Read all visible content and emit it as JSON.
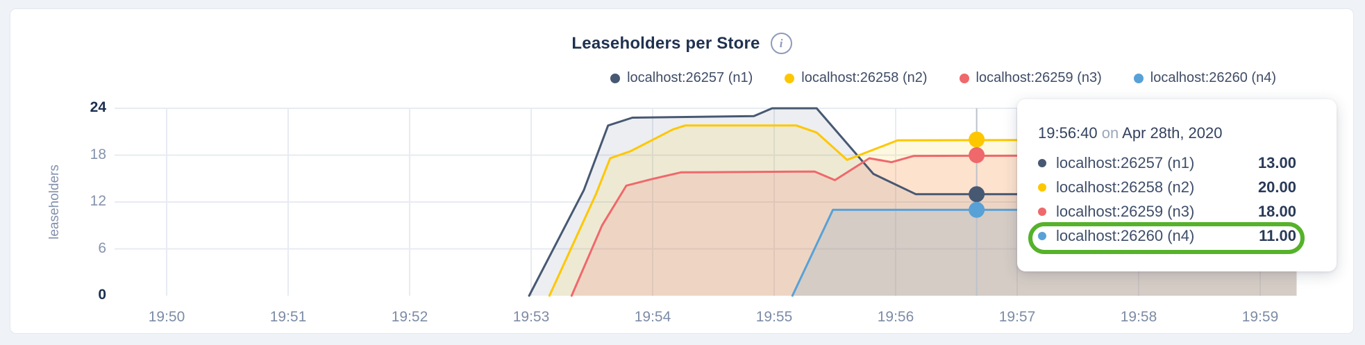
{
  "header": {
    "title": "Leaseholders per Store",
    "info_glyph": "i"
  },
  "legend": {
    "items": [
      {
        "label": "localhost:26257 (n1)",
        "color": "#475872"
      },
      {
        "label": "localhost:26258 (n2)",
        "color": "#fdc700"
      },
      {
        "label": "localhost:26259 (n3)",
        "color": "#ef686b"
      },
      {
        "label": "localhost:26260 (n4)",
        "color": "#58a1d6"
      }
    ]
  },
  "chart_data": {
    "type": "area",
    "title": "Leaseholders per Store",
    "ylabel": "leaseholders",
    "ylim": [
      0,
      24
    ],
    "grid": true,
    "grid_color": "#e7ebf2",
    "crosshair_color": "#bcc2cc",
    "x_ticks": [
      {
        "label": "19:50",
        "t": 0
      },
      {
        "label": "19:51",
        "t": 60
      },
      {
        "label": "19:52",
        "t": 120
      },
      {
        "label": "19:53",
        "t": 180
      },
      {
        "label": "19:54",
        "t": 240
      },
      {
        "label": "19:55",
        "t": 300
      },
      {
        "label": "19:56",
        "t": 360
      },
      {
        "label": "19:57",
        "t": 420
      },
      {
        "label": "19:58",
        "t": 480
      },
      {
        "label": "19:59",
        "t": 540
      }
    ],
    "y_ticks": [
      {
        "label": "24",
        "value": 24,
        "bold": true
      },
      {
        "label": "18",
        "value": 18,
        "bold": false
      },
      {
        "label": "12",
        "value": 12,
        "bold": false
      },
      {
        "label": "6",
        "value": 6,
        "bold": false
      },
      {
        "label": "0",
        "value": 0,
        "bold": true
      }
    ],
    "hover": {
      "t": 400,
      "time_label": "19:56:40"
    },
    "series": [
      {
        "name": "localhost:26257 (n1)",
        "color": "#475872",
        "fill_opacity": 0.1,
        "hover_value": 13,
        "points": [
          [
            179,
            0
          ],
          [
            206,
            13.5
          ],
          [
            218,
            21.8
          ],
          [
            230,
            22.8
          ],
          [
            290,
            23
          ],
          [
            299,
            24
          ],
          [
            321,
            24
          ],
          [
            349,
            15.6
          ],
          [
            370,
            13
          ],
          [
            558,
            13
          ]
        ]
      },
      {
        "name": "localhost:26258 (n2)",
        "color": "#fdc700",
        "fill_opacity": 0.12,
        "hover_value": 20,
        "points": [
          [
            189,
            0
          ],
          [
            212,
            13
          ],
          [
            219,
            17.6
          ],
          [
            229,
            18.5
          ],
          [
            250,
            21.3
          ],
          [
            256,
            21.8
          ],
          [
            311,
            21.8
          ],
          [
            321,
            20.9
          ],
          [
            336,
            17.4
          ],
          [
            361,
            19.9
          ],
          [
            558,
            20
          ]
        ]
      },
      {
        "name": "localhost:26259 (n3)",
        "color": "#ef686b",
        "fill_opacity": 0.15,
        "hover_value": 18,
        "points": [
          [
            200,
            0
          ],
          [
            215,
            9
          ],
          [
            227,
            14.1
          ],
          [
            239,
            14.9
          ],
          [
            254,
            15.8
          ],
          [
            320,
            15.9
          ],
          [
            330,
            14.8
          ],
          [
            347,
            17.6
          ],
          [
            358,
            17.1
          ],
          [
            369,
            17.9
          ],
          [
            558,
            18
          ]
        ]
      },
      {
        "name": "localhost:26260 (n4)",
        "color": "#58a1d6",
        "fill_opacity": 0.16,
        "hover_value": 11,
        "points": [
          [
            309,
            0
          ],
          [
            329,
            11
          ],
          [
            558,
            11
          ]
        ]
      }
    ]
  },
  "tooltip": {
    "time": "19:56:40",
    "on_word": "on",
    "date": "Apr 28th, 2020",
    "rows": [
      {
        "name": "localhost:26257 (n1)",
        "value": "13.00",
        "color": "#475872"
      },
      {
        "name": "localhost:26258 (n2)",
        "value": "20.00",
        "color": "#fdc700"
      },
      {
        "name": "localhost:26259 (n3)",
        "value": "18.00",
        "color": "#ef686b"
      },
      {
        "name": "localhost:26260 (n4)",
        "value": "11.00",
        "color": "#58a1d6"
      }
    ],
    "highlight_row_index": 3,
    "highlight_color": "#55b22a"
  }
}
